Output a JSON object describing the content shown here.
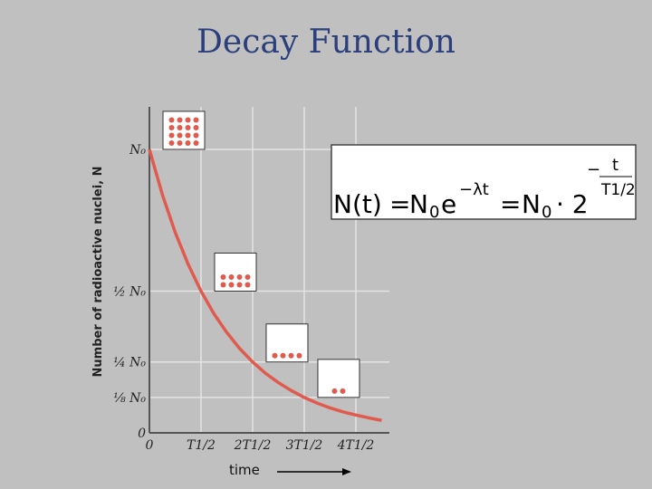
{
  "chart_data": {
    "type": "line",
    "title": "Decay Function",
    "y_label": "Number of radioactive nuclei, N",
    "x_label": "time",
    "x": [
      0,
      0.25,
      0.5,
      0.75,
      1,
      1.25,
      1.5,
      1.75,
      2,
      2.25,
      2.5,
      2.75,
      3,
      3.25,
      3.5,
      3.75,
      4,
      4.25,
      4.5
    ],
    "series": [
      {
        "color": "#e05a4e",
        "values": [
          1,
          0.841,
          0.707,
          0.595,
          0.5,
          0.42,
          0.354,
          0.297,
          0.25,
          0.21,
          0.177,
          0.149,
          0.125,
          0.105,
          0.088,
          0.074,
          0.063,
          0.053,
          0.044
        ]
      }
    ],
    "xlim": [
      0,
      4.65
    ],
    "ylim": [
      0,
      1.15
    ],
    "xticks": [
      0,
      {
        "value": 1,
        "label": "T1/2"
      },
      {
        "value": 2,
        "label": "2T1/2"
      },
      {
        "value": 3,
        "label": "3T1/2"
      },
      {
        "value": 4,
        "label": "4T1/2"
      }
    ],
    "yticks": [
      0,
      {
        "value": 0.125,
        "label": "⅛ N₀"
      },
      {
        "value": 0.25,
        "label": "¼ N₀"
      },
      {
        "value": 0.5,
        "label": "½ N₀"
      },
      {
        "value": 1,
        "label": "N₀"
      }
    ],
    "grid": true,
    "nuclei": [
      16,
      8,
      4,
      2
    ],
    "formula": {
      "lhs": "N(t)",
      "eq1": "=",
      "n1": "N",
      "s1": "0",
      "e": "e",
      "exp1": "−λt",
      "eq2": "=",
      "n2": "N",
      "s2": "0",
      "dot": "· 2",
      "minus": "−",
      "num": "t",
      "den": "T1/2"
    }
  }
}
